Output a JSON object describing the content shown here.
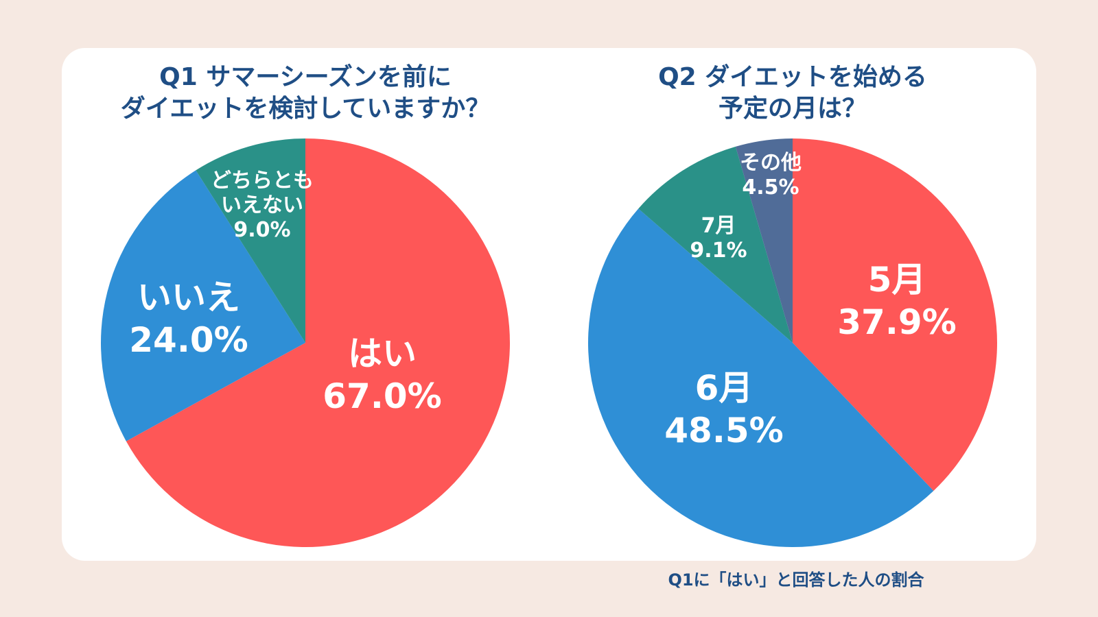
{
  "chart_data": [
    {
      "type": "pie",
      "title": "Q1 サマーシーズンを前に\nダイエットを検討していますか？",
      "slices": [
        {
          "label": "はい",
          "value": 67.0,
          "value_label": "67.0%",
          "color": "#fe5757"
        },
        {
          "label": "いいえ",
          "value": 24.0,
          "value_label": "24.0%",
          "color": "#2f8fd6"
        },
        {
          "label": "どちらとも\nいえない",
          "value": 9.0,
          "value_label": "9.0%",
          "color": "#2a9188"
        }
      ]
    },
    {
      "type": "pie",
      "title": "Q2 ダイエットを始める\n予定の月は？",
      "footnote": "Q1に「はい」と回答した人の割合",
      "slices": [
        {
          "label": "5月",
          "value": 37.9,
          "value_label": "37.9%",
          "color": "#fe5757"
        },
        {
          "label": "6月",
          "value": 48.5,
          "value_label": "48.5%",
          "color": "#2f8fd6"
        },
        {
          "label": "7月",
          "value": 9.1,
          "value_label": "9.1%",
          "color": "#2a9188"
        },
        {
          "label": "その他",
          "value": 4.5,
          "value_label": "4.5%",
          "color": "#506c98"
        }
      ]
    }
  ]
}
